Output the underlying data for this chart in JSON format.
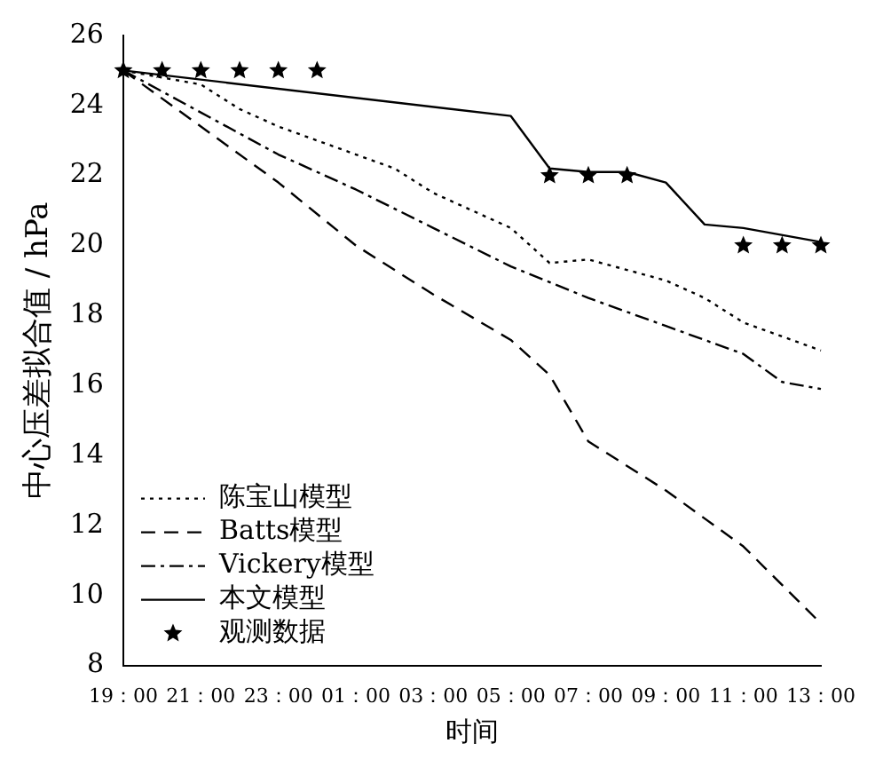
{
  "chart_data": {
    "type": "line",
    "xlabel": "时间",
    "ylabel": "中心压差拟合值 / hPa",
    "categories": [
      "19：00",
      null,
      "21：00",
      null,
      "23：00",
      null,
      "01：00",
      null,
      "03：00",
      null,
      "05：00",
      null,
      "07：00",
      null,
      "09：00",
      null,
      "11：00",
      null,
      "13：00"
    ],
    "ylim": [
      8,
      26
    ],
    "yticks": [
      8,
      10,
      12,
      14,
      16,
      18,
      20,
      22,
      24,
      26
    ],
    "grid": false,
    "legend": "bottom left",
    "series": [
      {
        "name": "陈宝山模型",
        "color": "#000000",
        "line_style": "dotted",
        "marker": "none",
        "values": [
          25,
          null,
          24.6,
          23.9,
          23.4,
          null,
          22.6,
          22.2,
          21.5,
          null,
          20.5,
          19.5,
          19.6,
          null,
          19,
          18.5,
          17.8,
          17.4,
          17
        ]
      },
      {
        "name": "Batts模型",
        "color": "#000000",
        "line_style": "dashed",
        "marker": "none",
        "values": [
          25,
          null,
          null,
          null,
          21.8,
          null,
          20,
          null,
          18.6,
          null,
          17.3,
          16.3,
          14.4,
          null,
          13,
          null,
          11.4,
          null,
          9.2
        ]
      },
      {
        "name": "Vickery模型",
        "color": "#000000",
        "line_style": "dashdot",
        "marker": "none",
        "values": [
          25,
          null,
          null,
          null,
          22.6,
          null,
          21.6,
          null,
          20.5,
          null,
          19.4,
          null,
          18.5,
          null,
          17.7,
          null,
          16.9,
          16.1,
          15.9
        ]
      },
      {
        "name": "本文模型",
        "color": "#000000",
        "line_style": "solid",
        "marker": "none",
        "values": [
          25,
          null,
          null,
          null,
          null,
          null,
          null,
          null,
          null,
          null,
          23.7,
          22.2,
          22.1,
          22.1,
          21.8,
          20.6,
          20.5,
          null,
          20.1
        ]
      },
      {
        "name": "观测数据",
        "type": "scatter",
        "color": "#000000",
        "marker": "star",
        "values": [
          25,
          25,
          25,
          25,
          25,
          25,
          null,
          null,
          null,
          null,
          null,
          22,
          22,
          22,
          null,
          null,
          20,
          20,
          20
        ]
      }
    ]
  }
}
